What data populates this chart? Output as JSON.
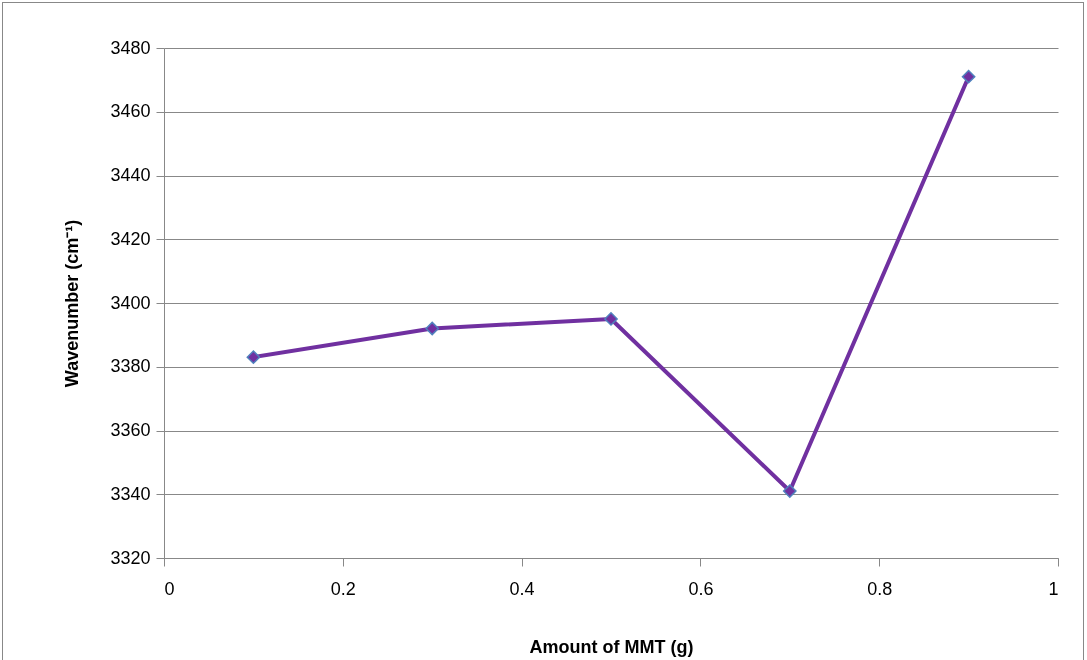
{
  "chart_data": {
    "type": "line",
    "xlabel": "Amount of MMT (g)",
    "ylabel": "Wavenumber (cm⁻¹)",
    "x": [
      0.1,
      0.3,
      0.5,
      0.7,
      0.9
    ],
    "values": [
      3383,
      3392,
      3395,
      3341,
      3471
    ],
    "color": "#7030a0",
    "xlim": [
      0,
      1
    ],
    "xticks": [
      0,
      0.2,
      0.4,
      0.6,
      0.8,
      1
    ],
    "ylim": [
      3320,
      3480
    ],
    "yticks": [
      3320,
      3340,
      3360,
      3380,
      3400,
      3420,
      3440,
      3460,
      3480
    ],
    "grid": "y",
    "marker": "diamond",
    "line_style": "solid"
  }
}
